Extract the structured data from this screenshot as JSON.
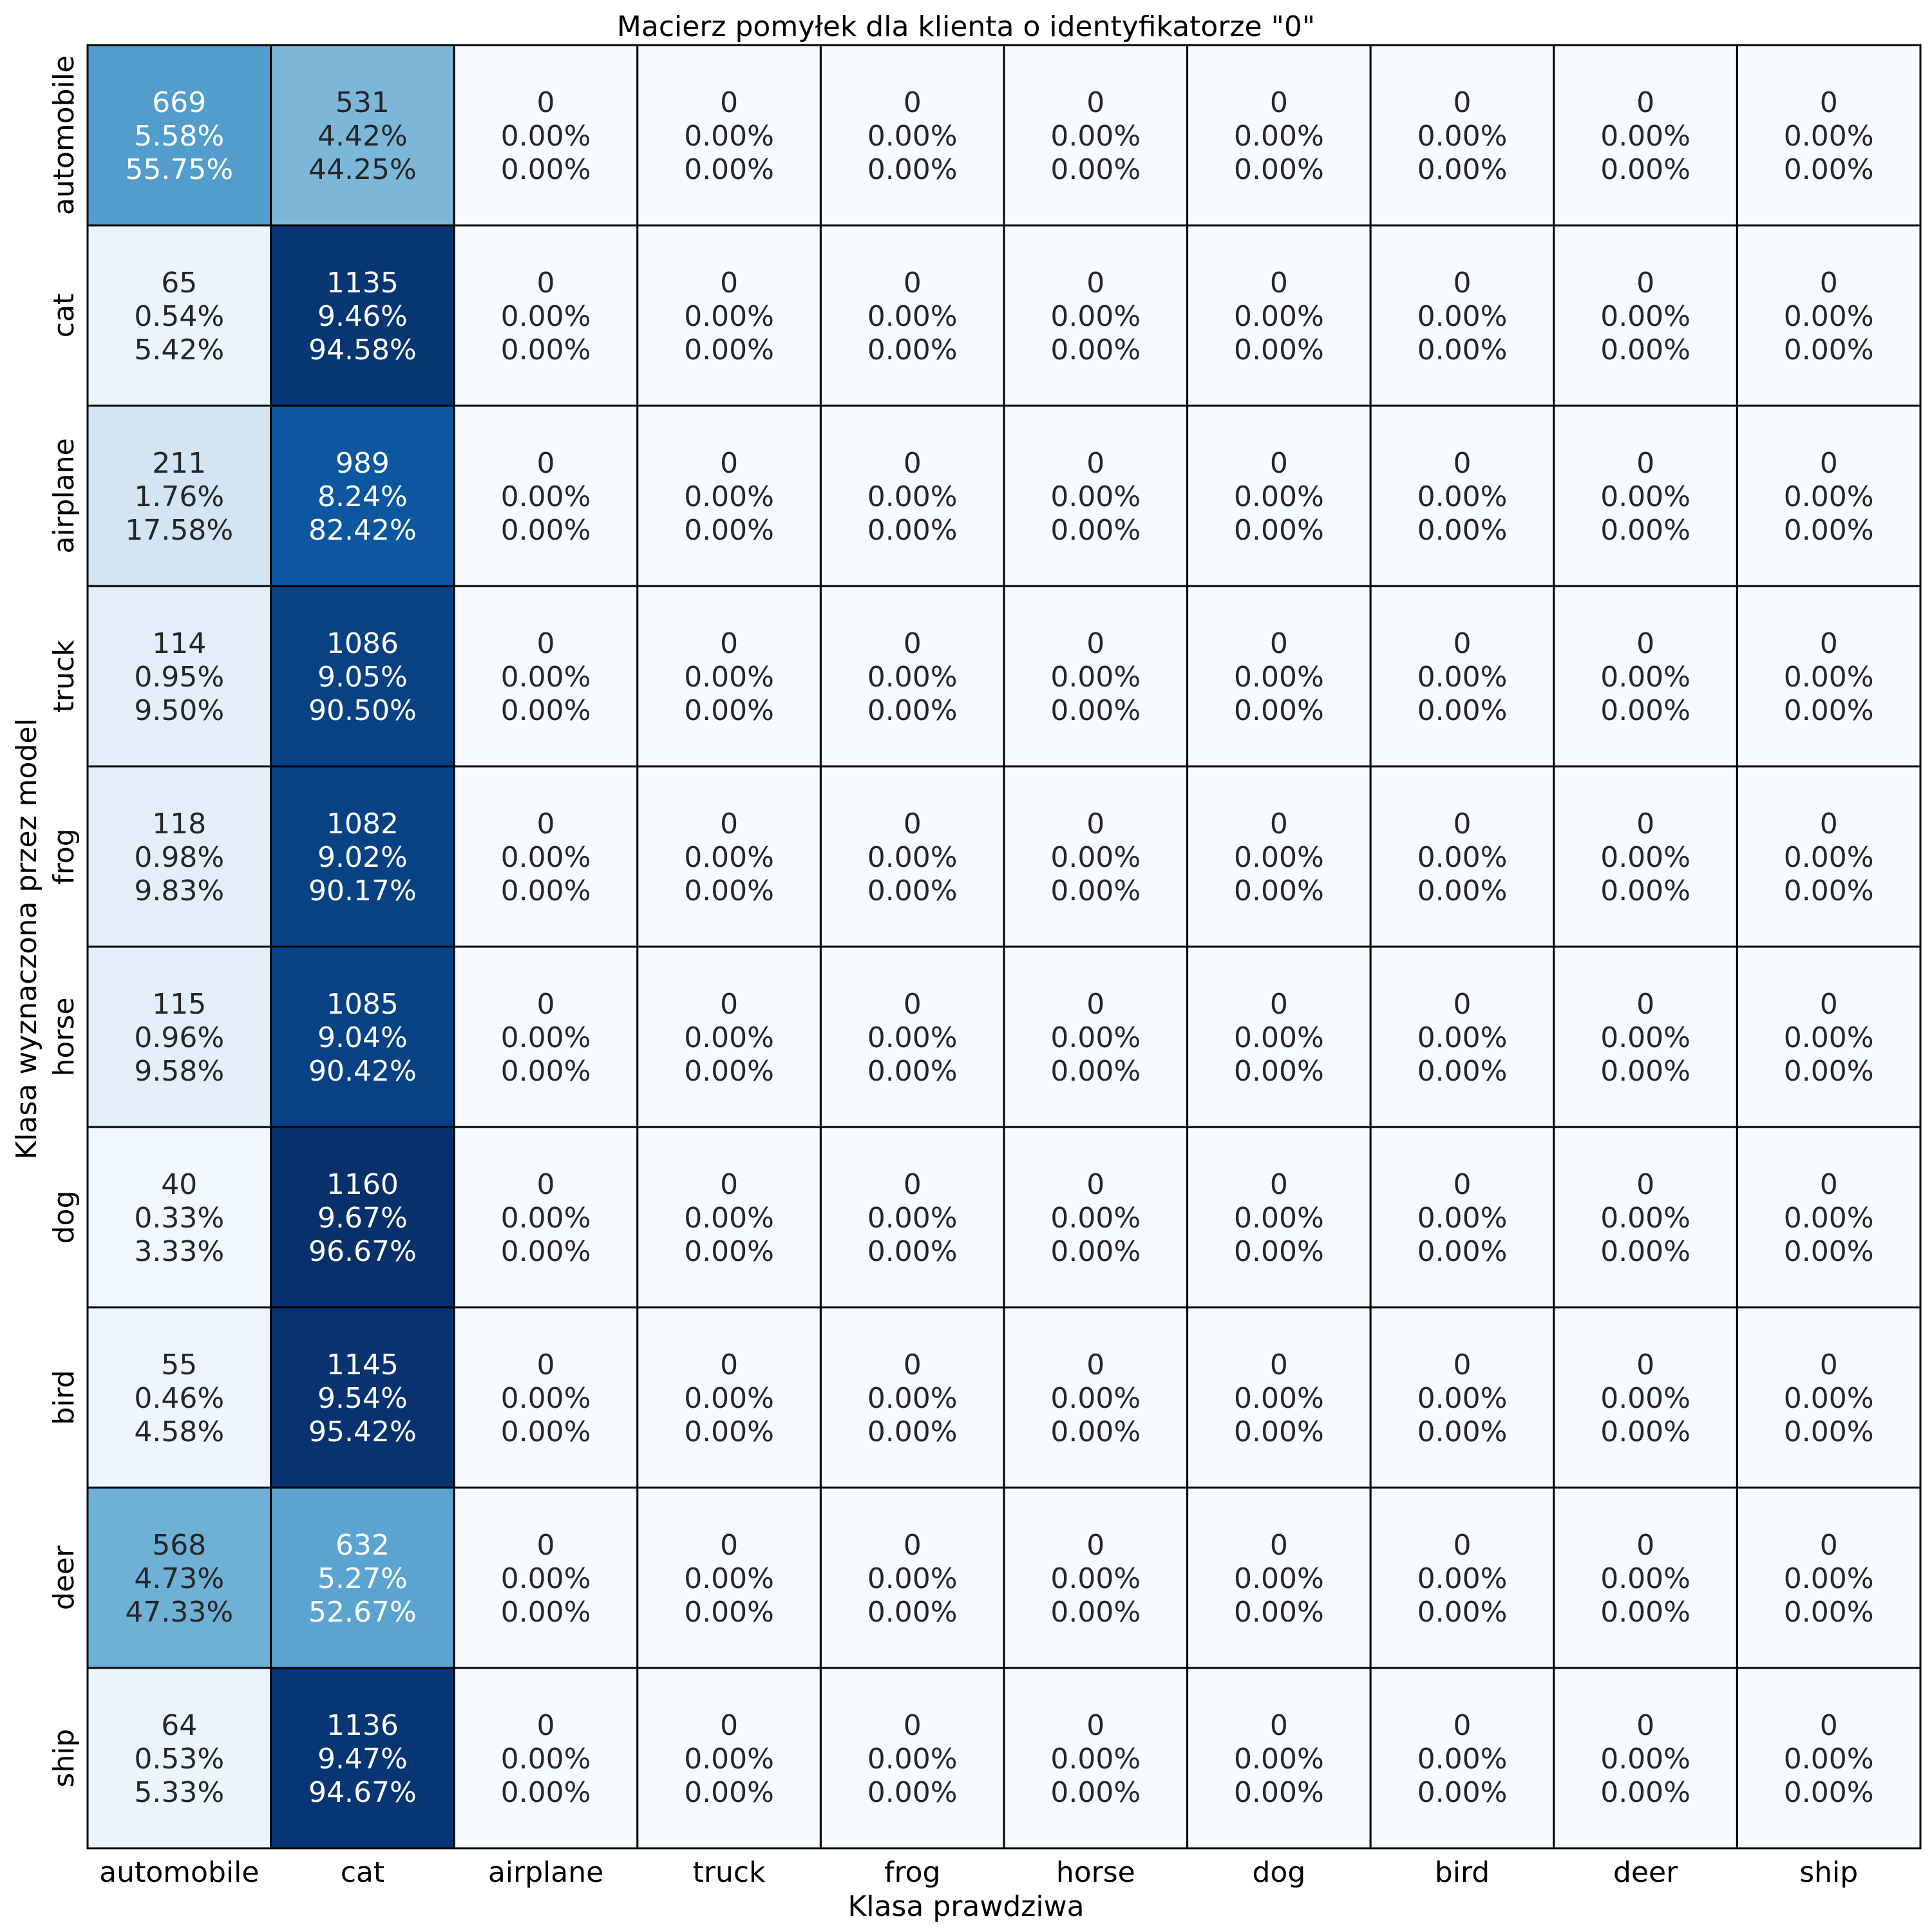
{
  "chart_data": {
    "type": "heatmap",
    "title": "Macierz pomyłek dla klienta o identyfikatorze \"0\"",
    "xlabel": "Klasa prawdziwa",
    "ylabel": "Klasa wyznaczona przez model",
    "x_categories": [
      "automobile",
      "cat",
      "airplane",
      "truck",
      "frog",
      "horse",
      "dog",
      "bird",
      "deer",
      "ship"
    ],
    "y_categories": [
      "automobile",
      "cat",
      "airplane",
      "truck",
      "frog",
      "horse",
      "dog",
      "bird",
      "deer",
      "ship"
    ],
    "colormap": "Blues",
    "color_range": [
      0,
      1160
    ],
    "values": [
      [
        669,
        531,
        0,
        0,
        0,
        0,
        0,
        0,
        0,
        0
      ],
      [
        65,
        1135,
        0,
        0,
        0,
        0,
        0,
        0,
        0,
        0
      ],
      [
        211,
        989,
        0,
        0,
        0,
        0,
        0,
        0,
        0,
        0
      ],
      [
        114,
        1086,
        0,
        0,
        0,
        0,
        0,
        0,
        0,
        0
      ],
      [
        118,
        1082,
        0,
        0,
        0,
        0,
        0,
        0,
        0,
        0
      ],
      [
        115,
        1085,
        0,
        0,
        0,
        0,
        0,
        0,
        0,
        0
      ],
      [
        40,
        1160,
        0,
        0,
        0,
        0,
        0,
        0,
        0,
        0
      ],
      [
        55,
        1145,
        0,
        0,
        0,
        0,
        0,
        0,
        0,
        0
      ],
      [
        568,
        632,
        0,
        0,
        0,
        0,
        0,
        0,
        0,
        0
      ],
      [
        64,
        1136,
        0,
        0,
        0,
        0,
        0,
        0,
        0,
        0
      ]
    ],
    "percent_of_total": [
      [
        "5.58%",
        "4.42%",
        "0.00%",
        "0.00%",
        "0.00%",
        "0.00%",
        "0.00%",
        "0.00%",
        "0.00%",
        "0.00%"
      ],
      [
        "0.54%",
        "9.46%",
        "0.00%",
        "0.00%",
        "0.00%",
        "0.00%",
        "0.00%",
        "0.00%",
        "0.00%",
        "0.00%"
      ],
      [
        "1.76%",
        "8.24%",
        "0.00%",
        "0.00%",
        "0.00%",
        "0.00%",
        "0.00%",
        "0.00%",
        "0.00%",
        "0.00%"
      ],
      [
        "0.95%",
        "9.05%",
        "0.00%",
        "0.00%",
        "0.00%",
        "0.00%",
        "0.00%",
        "0.00%",
        "0.00%",
        "0.00%"
      ],
      [
        "0.98%",
        "9.02%",
        "0.00%",
        "0.00%",
        "0.00%",
        "0.00%",
        "0.00%",
        "0.00%",
        "0.00%",
        "0.00%"
      ],
      [
        "0.96%",
        "9.04%",
        "0.00%",
        "0.00%",
        "0.00%",
        "0.00%",
        "0.00%",
        "0.00%",
        "0.00%",
        "0.00%"
      ],
      [
        "0.33%",
        "9.67%",
        "0.00%",
        "0.00%",
        "0.00%",
        "0.00%",
        "0.00%",
        "0.00%",
        "0.00%",
        "0.00%"
      ],
      [
        "0.46%",
        "9.54%",
        "0.00%",
        "0.00%",
        "0.00%",
        "0.00%",
        "0.00%",
        "0.00%",
        "0.00%",
        "0.00%"
      ],
      [
        "4.73%",
        "5.27%",
        "0.00%",
        "0.00%",
        "0.00%",
        "0.00%",
        "0.00%",
        "0.00%",
        "0.00%",
        "0.00%"
      ],
      [
        "0.53%",
        "9.47%",
        "0.00%",
        "0.00%",
        "0.00%",
        "0.00%",
        "0.00%",
        "0.00%",
        "0.00%",
        "0.00%"
      ]
    ],
    "percent_of_row": [
      [
        "55.75%",
        "44.25%",
        "0.00%",
        "0.00%",
        "0.00%",
        "0.00%",
        "0.00%",
        "0.00%",
        "0.00%",
        "0.00%"
      ],
      [
        "5.42%",
        "94.58%",
        "0.00%",
        "0.00%",
        "0.00%",
        "0.00%",
        "0.00%",
        "0.00%",
        "0.00%",
        "0.00%"
      ],
      [
        "17.58%",
        "82.42%",
        "0.00%",
        "0.00%",
        "0.00%",
        "0.00%",
        "0.00%",
        "0.00%",
        "0.00%",
        "0.00%"
      ],
      [
        "9.50%",
        "90.50%",
        "0.00%",
        "0.00%",
        "0.00%",
        "0.00%",
        "0.00%",
        "0.00%",
        "0.00%",
        "0.00%"
      ],
      [
        "9.83%",
        "90.17%",
        "0.00%",
        "0.00%",
        "0.00%",
        "0.00%",
        "0.00%",
        "0.00%",
        "0.00%",
        "0.00%"
      ],
      [
        "9.58%",
        "90.42%",
        "0.00%",
        "0.00%",
        "0.00%",
        "0.00%",
        "0.00%",
        "0.00%",
        "0.00%",
        "0.00%"
      ],
      [
        "3.33%",
        "96.67%",
        "0.00%",
        "0.00%",
        "0.00%",
        "0.00%",
        "0.00%",
        "0.00%",
        "0.00%",
        "0.00%"
      ],
      [
        "4.58%",
        "95.42%",
        "0.00%",
        "0.00%",
        "0.00%",
        "0.00%",
        "0.00%",
        "0.00%",
        "0.00%",
        "0.00%"
      ],
      [
        "47.33%",
        "52.67%",
        "0.00%",
        "0.00%",
        "0.00%",
        "0.00%",
        "0.00%",
        "0.00%",
        "0.00%",
        "0.00%"
      ],
      [
        "5.33%",
        "94.67%",
        "0.00%",
        "0.00%",
        "0.00%",
        "0.00%",
        "0.00%",
        "0.00%",
        "0.00%",
        "0.00%"
      ]
    ],
    "grid": true,
    "legend": "none"
  }
}
